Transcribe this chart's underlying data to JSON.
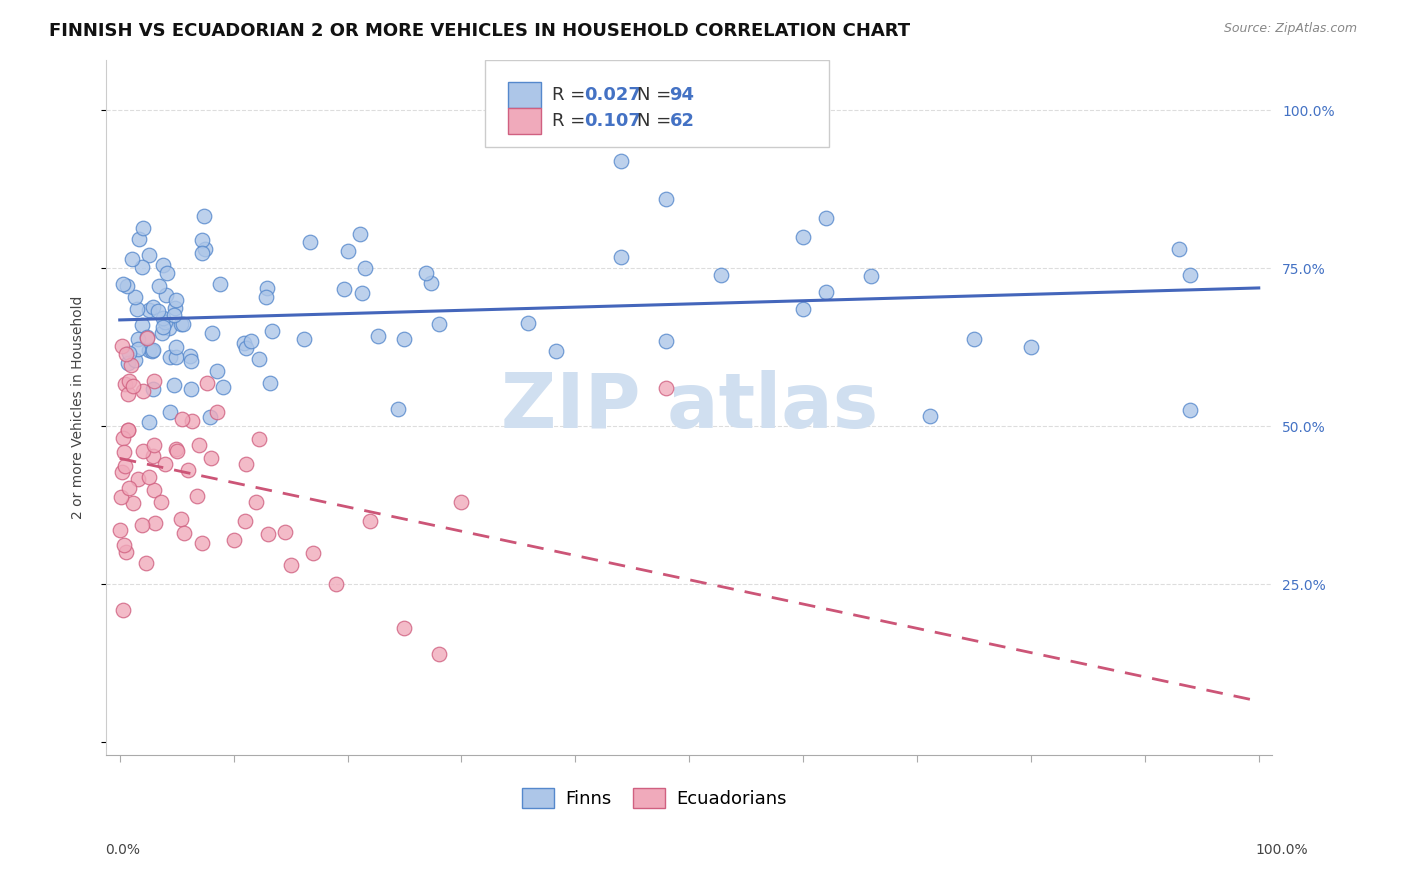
{
  "title": "FINNISH VS ECUADORIAN 2 OR MORE VEHICLES IN HOUSEHOLD CORRELATION CHART",
  "source": "Source: ZipAtlas.com",
  "ylabel": "2 or more Vehicles in Household",
  "color_finns": "#adc6e8",
  "color_finns_edge": "#5588cc",
  "color_ecuadorians": "#f0aabb",
  "color_ecuadorians_edge": "#d06080",
  "color_line_finns": "#4466bb",
  "color_line_ecuadorians": "#cc5577",
  "color_text_blue": "#4472c4",
  "watermark_color": "#d0dff0",
  "background_color": "#ffffff",
  "grid_color": "#dddddd",
  "title_fontsize": 13,
  "axis_label_fontsize": 10,
  "tick_fontsize": 10,
  "legend_fontsize": 13
}
